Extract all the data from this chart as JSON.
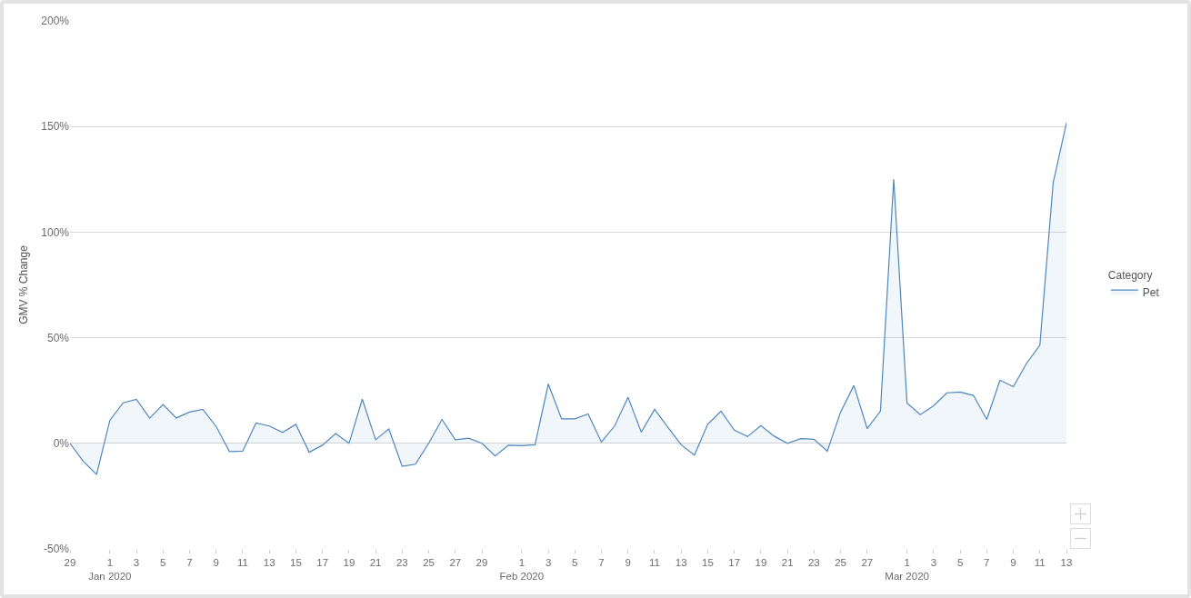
{
  "chart_data": {
    "type": "area",
    "ylabel": "GMV % Change",
    "legend_title": "Category",
    "x": [
      "2019-12-29",
      "2019-12-30",
      "2019-12-31",
      "2020-01-01",
      "2020-01-02",
      "2020-01-03",
      "2020-01-04",
      "2020-01-05",
      "2020-01-06",
      "2020-01-07",
      "2020-01-08",
      "2020-01-09",
      "2020-01-10",
      "2020-01-11",
      "2020-01-12",
      "2020-01-13",
      "2020-01-14",
      "2020-01-15",
      "2020-01-16",
      "2020-01-17",
      "2020-01-18",
      "2020-01-19",
      "2020-01-20",
      "2020-01-21",
      "2020-01-22",
      "2020-01-23",
      "2020-01-24",
      "2020-01-25",
      "2020-01-26",
      "2020-01-27",
      "2020-01-28",
      "2020-01-29",
      "2020-01-30",
      "2020-01-31",
      "2020-02-01",
      "2020-02-02",
      "2020-02-03",
      "2020-02-04",
      "2020-02-05",
      "2020-02-06",
      "2020-02-07",
      "2020-02-08",
      "2020-02-09",
      "2020-02-10",
      "2020-02-11",
      "2020-02-12",
      "2020-02-13",
      "2020-02-14",
      "2020-02-15",
      "2020-02-16",
      "2020-02-17",
      "2020-02-18",
      "2020-02-19",
      "2020-02-20",
      "2020-02-21",
      "2020-02-22",
      "2020-02-23",
      "2020-02-24",
      "2020-02-25",
      "2020-02-26",
      "2020-02-27",
      "2020-02-28",
      "2020-02-29",
      "2020-03-01",
      "2020-03-02",
      "2020-03-03",
      "2020-03-04",
      "2020-03-05",
      "2020-03-06",
      "2020-03-07",
      "2020-03-08",
      "2020-03-09",
      "2020-03-10",
      "2020-03-11",
      "2020-03-12",
      "2020-03-13"
    ],
    "series": [
      {
        "name": "Pet",
        "color": "#4f87bd",
        "values": [
          0,
          -8.5,
          -14.8,
          10.9,
          19.2,
          20.8,
          11.9,
          18.4,
          12.0,
          14.8,
          16.1,
          8.0,
          -3.9,
          -3.7,
          9.6,
          8.2,
          5.2,
          9.0,
          -4.2,
          -0.9,
          4.6,
          0,
          20.9,
          1.7,
          6.8,
          -10.9,
          -9.9,
          0,
          11.3,
          1.7,
          2.4,
          0,
          -6.0,
          -0.9,
          -1.1,
          -0.7,
          28.1,
          11.6,
          11.6,
          13.9,
          0.6,
          8.3,
          21.8,
          5.3,
          16.1,
          7.6,
          -0.7,
          -5.6,
          9.0,
          15.2,
          6.2,
          3.2,
          8.4,
          3.4,
          0,
          2.2,
          1.9,
          -3.7,
          14.8,
          27.4,
          7.0,
          15.3,
          125.0,
          19.1,
          13.6,
          17.8,
          23.9,
          24.3,
          22.7,
          11.3,
          29.9,
          26.8,
          37.9,
          46.5,
          123.3,
          151.8
        ]
      }
    ],
    "xlim": [
      "2019-12-29",
      "2020-03-13"
    ],
    "xticks": [
      {
        "value": "2019-12-29",
        "label": "29"
      },
      {
        "value": "2020-01-01",
        "label": "1\nJan 2020"
      },
      {
        "value": "2020-01-03",
        "label": "3"
      },
      {
        "value": "2020-01-05",
        "label": "5"
      },
      {
        "value": "2020-01-07",
        "label": "7"
      },
      {
        "value": "2020-01-09",
        "label": "9"
      },
      {
        "value": "2020-01-11",
        "label": "11"
      },
      {
        "value": "2020-01-13",
        "label": "13"
      },
      {
        "value": "2020-01-15",
        "label": "15"
      },
      {
        "value": "2020-01-17",
        "label": "17"
      },
      {
        "value": "2020-01-19",
        "label": "19"
      },
      {
        "value": "2020-01-21",
        "label": "21"
      },
      {
        "value": "2020-01-23",
        "label": "23"
      },
      {
        "value": "2020-01-25",
        "label": "25"
      },
      {
        "value": "2020-01-27",
        "label": "27"
      },
      {
        "value": "2020-01-29",
        "label": "29"
      },
      {
        "value": "2020-02-01",
        "label": "1\nFeb 2020"
      },
      {
        "value": "2020-02-03",
        "label": "3"
      },
      {
        "value": "2020-02-05",
        "label": "5"
      },
      {
        "value": "2020-02-07",
        "label": "7"
      },
      {
        "value": "2020-02-09",
        "label": "9"
      },
      {
        "value": "2020-02-11",
        "label": "11"
      },
      {
        "value": "2020-02-13",
        "label": "13"
      },
      {
        "value": "2020-02-15",
        "label": "15"
      },
      {
        "value": "2020-02-17",
        "label": "17"
      },
      {
        "value": "2020-02-19",
        "label": "19"
      },
      {
        "value": "2020-02-21",
        "label": "21"
      },
      {
        "value": "2020-02-23",
        "label": "23"
      },
      {
        "value": "2020-02-25",
        "label": "25"
      },
      {
        "value": "2020-02-27",
        "label": "27"
      },
      {
        "value": "2020-03-01",
        "label": "1\nMar 2020"
      },
      {
        "value": "2020-03-03",
        "label": "3"
      },
      {
        "value": "2020-03-05",
        "label": "5"
      },
      {
        "value": "2020-03-07",
        "label": "7"
      },
      {
        "value": "2020-03-09",
        "label": "9"
      },
      {
        "value": "2020-03-11",
        "label": "11"
      },
      {
        "value": "2020-03-13",
        "label": "13"
      }
    ],
    "ylim": [
      -50,
      200
    ],
    "yticks": [
      {
        "value": -50,
        "label": "-50%"
      },
      {
        "value": 0,
        "label": "0%"
      },
      {
        "value": 50,
        "label": "50%"
      },
      {
        "value": 100,
        "label": "100%"
      },
      {
        "value": 150,
        "label": "150%"
      },
      {
        "value": 200,
        "label": "200%"
      }
    ],
    "grid": "y",
    "legend": "right"
  }
}
